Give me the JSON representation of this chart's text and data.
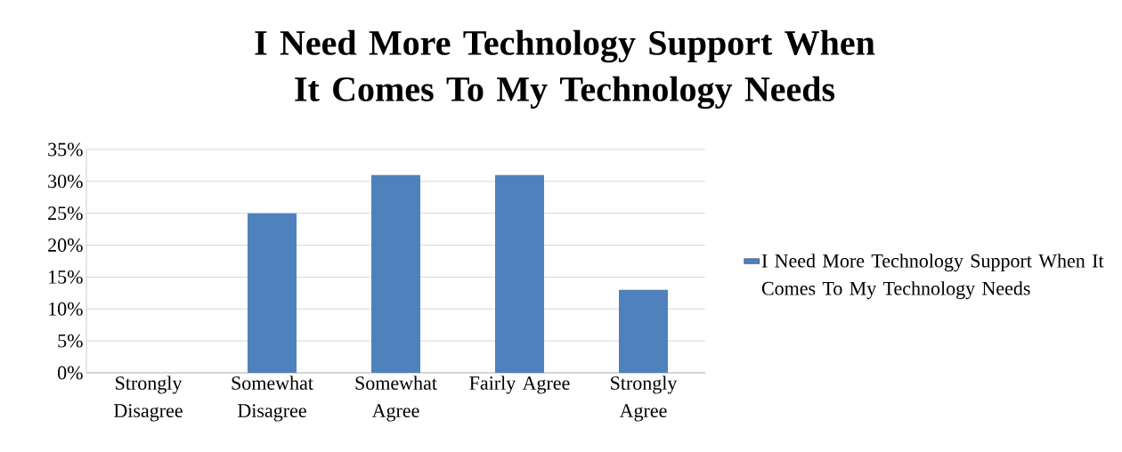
{
  "chart_data": {
    "type": "bar",
    "title": "I Need More Technology Support When It Comes To My Technology Needs",
    "categories": [
      "Strongly Disagree",
      "Somewhat Disagree",
      "Somewhat Agree",
      "Fairly Agree",
      "Strongly Agree"
    ],
    "series": [
      {
        "name": "I Need More Technology Support When It Comes To My Technology Needs",
        "color": "#4f81bd",
        "values": [
          0,
          25,
          31,
          31,
          13
        ]
      }
    ],
    "ylim": [
      0,
      35
    ],
    "yticks": [
      {
        "value": 0,
        "label": "0%"
      },
      {
        "value": 5,
        "label": "5%"
      },
      {
        "value": 10,
        "label": "10%"
      },
      {
        "value": 15,
        "label": "15%"
      },
      {
        "value": 20,
        "label": "20%"
      },
      {
        "value": 25,
        "label": "25%"
      },
      {
        "value": 30,
        "label": "30%"
      },
      {
        "value": 35,
        "label": "35%"
      }
    ],
    "grid": "y",
    "legend": "right"
  }
}
